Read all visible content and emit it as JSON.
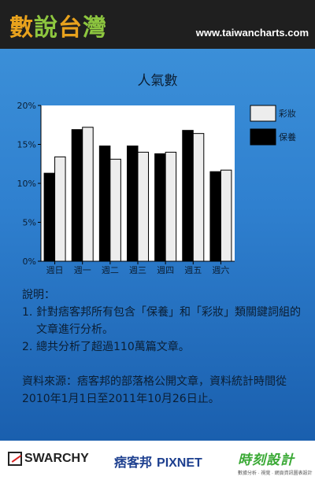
{
  "header": {
    "logo_chars": [
      {
        "text": "數",
        "color": "#e8a21d"
      },
      {
        "text": "說",
        "color": "#8dc63f"
      },
      {
        "text": "台",
        "color": "#e8a21d"
      },
      {
        "text": "灣",
        "color": "#8dc63f"
      }
    ],
    "site_url": "www.taiwancharts.com"
  },
  "chart_data": {
    "type": "bar",
    "title": "人氣數",
    "categories": [
      "週日",
      "週一",
      "週二",
      "週三",
      "週四",
      "週五",
      "週六"
    ],
    "series": [
      {
        "name": "保養",
        "color": "#000000",
        "values": [
          11.3,
          16.9,
          14.8,
          14.8,
          13.8,
          16.8,
          11.5
        ]
      },
      {
        "name": "彩妝",
        "color": "#ededed",
        "values": [
          13.4,
          17.2,
          13.1,
          14.0,
          14.0,
          16.4,
          11.7
        ]
      }
    ],
    "legend_order": [
      "彩妝",
      "保養"
    ],
    "legend_position": "right",
    "ylim": [
      0,
      20
    ],
    "yticks": [
      "0%",
      "5%",
      "10%",
      "15%",
      "20%"
    ],
    "ytick_values": [
      0,
      5,
      10,
      15,
      20
    ],
    "xlabel": "",
    "ylabel": "",
    "grid": false
  },
  "notes": {
    "heading": "說明：",
    "items": [
      {
        "num": "1.",
        "text": "針對痞客邦所有包含「保養」和「彩妝」類關鍵詞組的文章進行分析。"
      },
      {
        "num": "2.",
        "text": "總共分析了超過110萬篇文章。"
      }
    ],
    "source": "資料來源：痞客邦的部落格公開文章，資料統計時間從2010年1月1日至2011年10月26日止。"
  },
  "footer": {
    "swarchy": "SWARCHY",
    "pixnet_brand": "痞客邦",
    "pixnet": "PIXNET",
    "design": "時刻設計",
    "design_sub": "數據分析 · 視覺 · 網頁資訊圖表設計"
  }
}
